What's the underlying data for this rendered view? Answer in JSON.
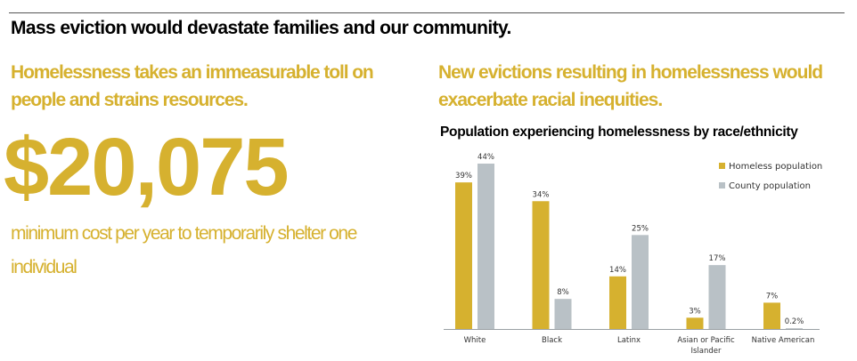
{
  "headline": "Mass eviction would devastate families and our community.",
  "left": {
    "subhead": "Homelessness takes an immeasurable toll on people and strains resources.",
    "big_number": "$20,075",
    "caption": "minimum cost per year to temporarily shelter one individual"
  },
  "right": {
    "subhead": "New evictions resulting in homelessness would exacerbate racial inequities."
  },
  "colors": {
    "gold": "#d6b12f",
    "gray": "#b9c1c6",
    "rule": "#555555"
  },
  "chart_data": {
    "type": "bar",
    "title": "Population experiencing homelessness by race/ethnicity",
    "xlabel": "",
    "ylabel": "",
    "ylim": [
      0,
      44
    ],
    "grid": false,
    "legend_position": "top-right",
    "categories": [
      "White",
      "Black",
      "Latinx",
      "Asian or Pacific Islander",
      "Native American"
    ],
    "category_lines": [
      [
        "White"
      ],
      [
        "Black"
      ],
      [
        "Latinx"
      ],
      [
        "Asian or Pacific",
        "Islander"
      ],
      [
        "Native American"
      ]
    ],
    "series": [
      {
        "name": "Homeless population",
        "color": "#d6b12f",
        "values": [
          39,
          34,
          14,
          3,
          7
        ],
        "labels": [
          "39%",
          "34%",
          "14%",
          "3%",
          "7%"
        ]
      },
      {
        "name": "County population",
        "color": "#b9c1c6",
        "values": [
          44,
          8,
          25,
          17,
          0.2
        ],
        "labels": [
          "44%",
          "8%",
          "25%",
          "17%",
          "0.2%"
        ]
      }
    ]
  }
}
